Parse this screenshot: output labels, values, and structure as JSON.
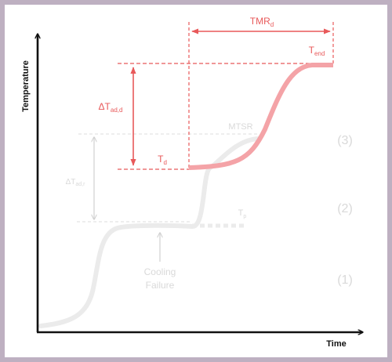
{
  "colors": {
    "accent": "#e8595a",
    "accent_curve": "#f4a3a7",
    "faded_curve": "#ebebeb",
    "faded_text": "#d9d9d9",
    "faded_arrow": "#d0d0d0",
    "axis": "#111111",
    "border": "#beb0c1"
  },
  "axes": {
    "x_label": "Time",
    "y_label": "Temperature"
  },
  "labels": {
    "tmr": {
      "main": "TMR",
      "sub": "d"
    },
    "t_end": {
      "main": "T",
      "sub": "end"
    },
    "delta_t_ad_d": {
      "main": "ΔT",
      "sub": "ad,d"
    },
    "t_d": {
      "main": "T",
      "sub": "d"
    },
    "mtsr": "MTSR",
    "delta_t_ad_r": {
      "main": "ΔT",
      "sub": "ad,r"
    },
    "t_p": {
      "main": "T",
      "sub": "p"
    },
    "cooling_failure_line1": "Cooling",
    "cooling_failure_line2": "Failure",
    "stage_3": "(3)",
    "stage_2": "(2)",
    "stage_1": "(1)"
  }
}
